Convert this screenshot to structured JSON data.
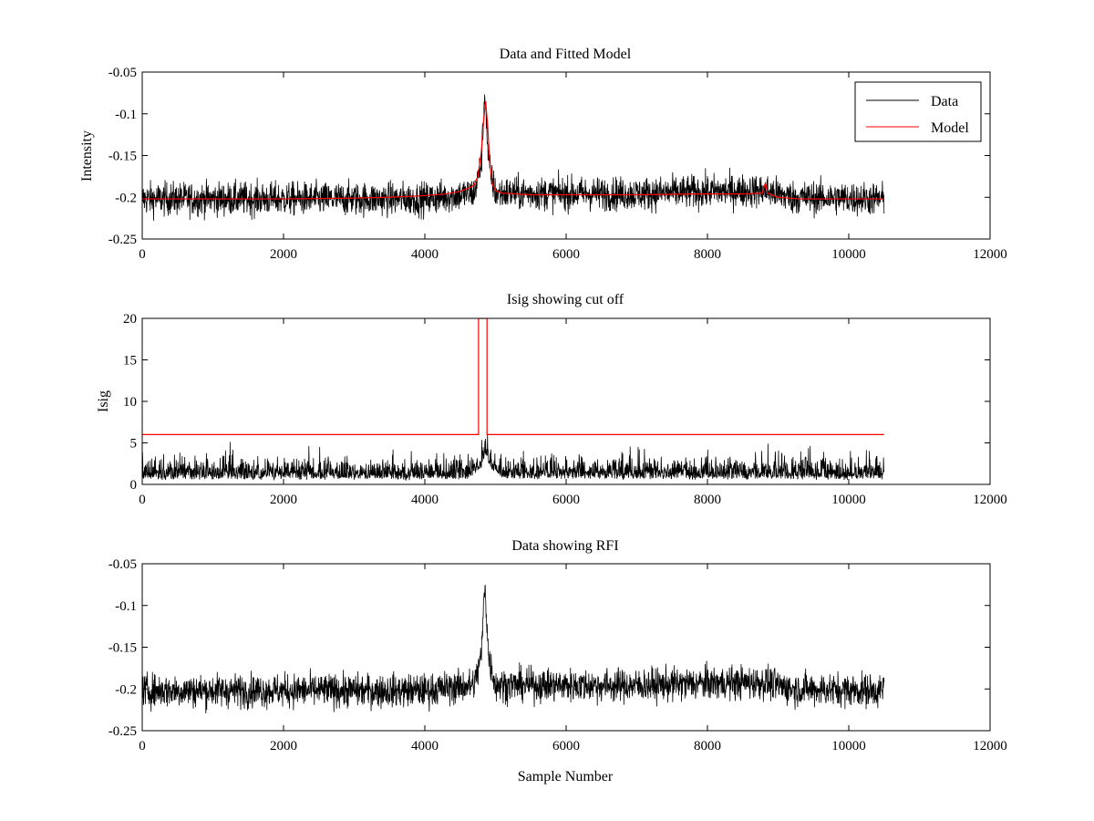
{
  "figure": {
    "background": "#ffffff",
    "colors": {
      "data": "#000000",
      "model": "#ff0000",
      "axes": "#000000"
    }
  },
  "chart_data": [
    {
      "type": "line",
      "title": "Data and Fitted Model",
      "xlabel": "",
      "ylabel": "Intensity",
      "xlim": [
        0,
        12000
      ],
      "ylim": [
        -0.25,
        -0.05
      ],
      "y_reversed": true,
      "x_ticks": [
        "0",
        "2000",
        "4000",
        "6000",
        "8000",
        "10000",
        "12000"
      ],
      "x_tick_values": [
        0,
        2000,
        4000,
        6000,
        8000,
        10000,
        12000
      ],
      "y_ticks": [
        "-0.05",
        "-0.1",
        "-0.15",
        "-0.2",
        "-0.25"
      ],
      "y_tick_values": [
        -0.05,
        -0.1,
        -0.15,
        -0.2,
        -0.25
      ],
      "legend": {
        "placement": "top-right",
        "entries": [
          "Data",
          "Model"
        ]
      },
      "grid": false,
      "series": [
        {
          "name": "Data",
          "color": "#000000",
          "style": "noisy",
          "x_range": [
            0,
            10500
          ],
          "noise_amplitude": 0.022,
          "baseline": [
            [
              0,
              -0.202
            ],
            [
              4000,
              -0.202
            ],
            [
              4700,
              -0.195
            ],
            [
              4800,
              -0.16
            ],
            [
              4850,
              -0.07
            ],
            [
              4900,
              -0.16
            ],
            [
              5000,
              -0.195
            ],
            [
              7000,
              -0.196
            ],
            [
              8000,
              -0.193
            ],
            [
              8800,
              -0.192
            ],
            [
              9200,
              -0.2
            ],
            [
              10500,
              -0.202
            ]
          ]
        },
        {
          "name": "Model",
          "color": "#ff0000",
          "style": "line",
          "points": [
            [
              0,
              -0.202
            ],
            [
              1000,
              -0.202
            ],
            [
              2000,
              -0.202
            ],
            [
              3000,
              -0.201
            ],
            [
              3500,
              -0.2
            ],
            [
              4000,
              -0.198
            ],
            [
              4300,
              -0.196
            ],
            [
              4500,
              -0.193
            ],
            [
              4650,
              -0.188
            ],
            [
              4700,
              -0.185
            ],
            [
              4750,
              -0.175
            ],
            [
              4800,
              -0.145
            ],
            [
              4830,
              -0.11
            ],
            [
              4860,
              -0.085
            ],
            [
              4890,
              -0.115
            ],
            [
              4920,
              -0.16
            ],
            [
              4960,
              -0.185
            ],
            [
              5000,
              -0.192
            ],
            [
              5100,
              -0.195
            ],
            [
              5500,
              -0.197
            ],
            [
              6000,
              -0.197
            ],
            [
              7000,
              -0.197
            ],
            [
              7800,
              -0.196
            ],
            [
              8500,
              -0.196
            ],
            [
              8780,
              -0.195
            ],
            [
              8800,
              -0.188
            ],
            [
              8820,
              -0.183
            ],
            [
              8850,
              -0.195
            ],
            [
              9000,
              -0.2
            ],
            [
              9300,
              -0.202
            ],
            [
              10500,
              -0.202
            ]
          ]
        }
      ]
    },
    {
      "type": "line",
      "title": "Isig showing cut off",
      "xlabel": "",
      "ylabel": "Isig",
      "xlim": [
        0,
        12000
      ],
      "ylim": [
        0,
        20
      ],
      "y_reversed": false,
      "x_ticks": [
        "0",
        "2000",
        "4000",
        "6000",
        "8000",
        "10000",
        "12000"
      ],
      "x_tick_values": [
        0,
        2000,
        4000,
        6000,
        8000,
        10000,
        12000
      ],
      "y_ticks": [
        "20",
        "15",
        "10",
        "5",
        "0"
      ],
      "y_tick_values": [
        20,
        15,
        10,
        5,
        0
      ],
      "grid": false,
      "series": [
        {
          "color": "#000000",
          "style": "abs-noise",
          "x_range": [
            0,
            10500
          ],
          "noise_amplitude": 1.6,
          "baseline": [
            [
              0,
              0.8
            ],
            [
              4600,
              0.8
            ],
            [
              4800,
              2.0
            ],
            [
              4860,
              3.6
            ],
            [
              4920,
              2.0
            ],
            [
              5100,
              0.9
            ],
            [
              10500,
              0.8
            ]
          ]
        },
        {
          "color": "#ff0000",
          "style": "line",
          "points": [
            [
              0,
              6
            ],
            [
              4760,
              6
            ],
            [
              4760,
              20
            ],
            [
              4880,
              20
            ],
            [
              4880,
              6
            ],
            [
              10500,
              6
            ]
          ]
        }
      ]
    },
    {
      "type": "line",
      "title": "Data showing RFI",
      "xlabel": "Sample Number",
      "ylabel": "",
      "xlim": [
        0,
        12000
      ],
      "ylim": [
        -0.25,
        -0.05
      ],
      "y_reversed": true,
      "x_ticks": [
        "0",
        "2000",
        "4000",
        "6000",
        "8000",
        "10000",
        "12000"
      ],
      "x_tick_values": [
        0,
        2000,
        4000,
        6000,
        8000,
        10000,
        12000
      ],
      "y_ticks": [
        "-0.05",
        "-0.1",
        "-0.15",
        "-0.2",
        "-0.25"
      ],
      "y_tick_values": [
        -0.05,
        -0.1,
        -0.15,
        -0.2,
        -0.25
      ],
      "grid": false,
      "series": [
        {
          "color": "#000000",
          "style": "noisy",
          "x_range": [
            0,
            10500
          ],
          "noise_amplitude": 0.022,
          "baseline": [
            [
              0,
              -0.202
            ],
            [
              4000,
              -0.202
            ],
            [
              4700,
              -0.195
            ],
            [
              4800,
              -0.16
            ],
            [
              4850,
              -0.07
            ],
            [
              4900,
              -0.16
            ],
            [
              5000,
              -0.195
            ],
            [
              7000,
              -0.196
            ],
            [
              8000,
              -0.193
            ],
            [
              8800,
              -0.192
            ],
            [
              9200,
              -0.2
            ],
            [
              10500,
              -0.202
            ]
          ]
        }
      ]
    }
  ]
}
